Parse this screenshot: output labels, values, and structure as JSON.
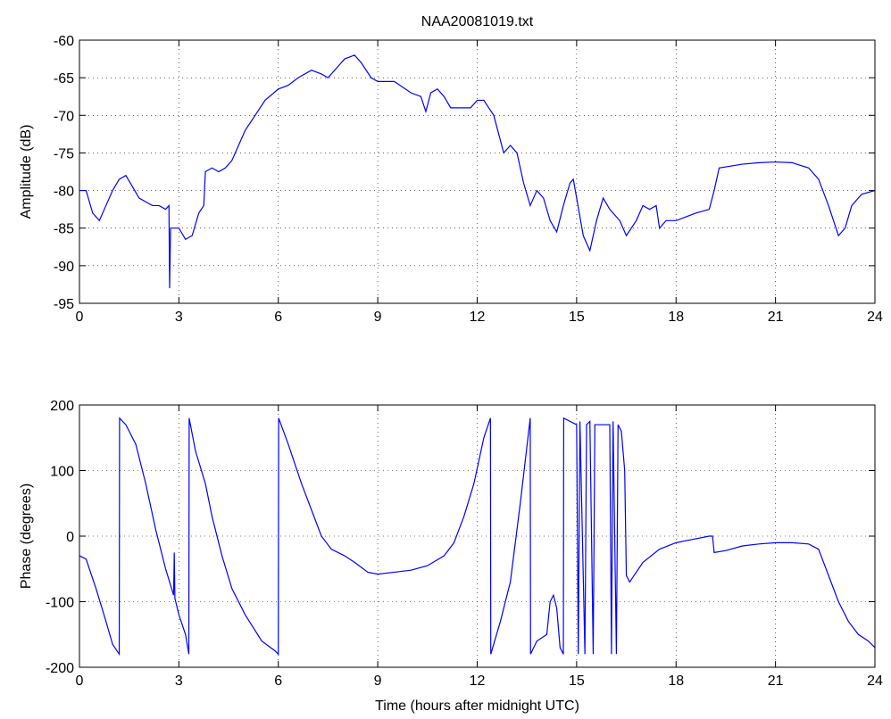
{
  "chart_data": [
    {
      "type": "line",
      "title": "NAA20081019.txt",
      "ylabel": "Amplitude (dB)",
      "color": "#0000ff",
      "grid": true,
      "xlim": [
        0,
        24
      ],
      "xticks": [
        0,
        3,
        6,
        9,
        12,
        15,
        18,
        21,
        24
      ],
      "ylim": [
        -95,
        -60
      ],
      "yticks": [
        -95,
        -90,
        -85,
        -80,
        -75,
        -70,
        -65,
        -60
      ],
      "x": [
        0,
        0.2,
        0.4,
        0.6,
        0.8,
        1.0,
        1.2,
        1.4,
        1.6,
        1.8,
        2.0,
        2.2,
        2.4,
        2.6,
        2.7,
        2.72,
        2.75,
        3.0,
        3.2,
        3.4,
        3.6,
        3.75,
        3.8,
        4.0,
        4.2,
        4.4,
        4.6,
        4.8,
        5.0,
        5.3,
        5.6,
        6.0,
        6.3,
        6.6,
        7.0,
        7.3,
        7.5,
        7.8,
        8.0,
        8.3,
        8.5,
        8.8,
        9.0,
        9.5,
        10.0,
        10.3,
        10.45,
        10.6,
        10.8,
        11.0,
        11.2,
        11.5,
        11.8,
        12.0,
        12.2,
        12.5,
        12.8,
        13.0,
        13.2,
        13.4,
        13.6,
        13.8,
        14.0,
        14.2,
        14.4,
        14.6,
        14.8,
        14.9,
        15.0,
        15.2,
        15.4,
        15.6,
        15.8,
        16.0,
        16.3,
        16.5,
        16.8,
        17.0,
        17.2,
        17.4,
        17.5,
        17.7,
        18.0,
        18.3,
        18.6,
        19.0,
        19.15,
        19.3,
        20.0,
        20.5,
        21.0,
        21.5,
        22.0,
        22.3,
        22.6,
        22.9,
        23.1,
        23.3,
        23.6,
        24.0
      ],
      "values": [
        -80,
        -80,
        -83,
        -84,
        -82,
        -80,
        -78.5,
        -78,
        -79.5,
        -81,
        -81.5,
        -82,
        -82,
        -82.5,
        -82,
        -93,
        -85,
        -85,
        -86.5,
        -86,
        -83,
        -82,
        -77.5,
        -77,
        -77.5,
        -77,
        -76,
        -74,
        -72,
        -70,
        -68,
        -66.5,
        -66,
        -65,
        -64,
        -64.5,
        -65,
        -63.5,
        -62.5,
        -62,
        -63,
        -65,
        -65.5,
        -65.5,
        -67,
        -67.5,
        -69.5,
        -67,
        -66.5,
        -67.5,
        -69,
        -69,
        -69,
        -68,
        -68,
        -70,
        -75,
        -74,
        -75,
        -79,
        -82,
        -80,
        -81,
        -84,
        -85.5,
        -82,
        -79,
        -78.5,
        -81,
        -86,
        -88,
        -84,
        -81,
        -82.5,
        -84,
        -86,
        -84,
        -82,
        -82.5,
        -82,
        -85,
        -84,
        -84,
        -83.5,
        -83,
        -82.5,
        -80,
        -77,
        -76.5,
        -76.3,
        -76.2,
        -76.3,
        -77,
        -78.5,
        -82,
        -86,
        -85,
        -82,
        -80.5,
        -80
      ]
    },
    {
      "type": "line",
      "ylabel": "Phase (degrees)",
      "xlabel": "Time (hours after midnight UTC)",
      "color": "#0000ff",
      "grid": true,
      "xlim": [
        0,
        24
      ],
      "xticks": [
        0,
        3,
        6,
        9,
        12,
        15,
        18,
        21,
        24
      ],
      "ylim": [
        -200,
        200
      ],
      "yticks": [
        -200,
        -100,
        0,
        100,
        200
      ],
      "x": [
        0,
        0.2,
        0.5,
        0.8,
        1.0,
        1.2,
        1.21,
        1.4,
        1.7,
        2.0,
        2.3,
        2.6,
        2.84,
        2.86,
        2.88,
        3.0,
        3.2,
        3.3,
        3.31,
        3.5,
        3.8,
        4.0,
        4.3,
        4.6,
        5.0,
        5.5,
        5.9,
        6.0,
        6.01,
        6.3,
        6.7,
        7.0,
        7.3,
        7.6,
        8.0,
        8.3,
        8.7,
        9.0,
        9.5,
        10.0,
        10.5,
        11.0,
        11.3,
        11.6,
        11.9,
        12.2,
        12.4,
        12.41,
        12.7,
        13.0,
        13.3,
        13.6,
        13.61,
        13.8,
        14.1,
        14.2,
        14.3,
        14.4,
        14.5,
        14.6,
        14.61,
        14.8,
        15.0,
        15.05,
        15.1,
        15.25,
        15.3,
        15.4,
        15.5,
        15.55,
        15.8,
        16.0,
        16.05,
        16.1,
        16.2,
        16.25,
        16.35,
        16.45,
        16.5,
        16.6,
        17.0,
        17.5,
        18.0,
        18.5,
        19.0,
        19.1,
        19.15,
        19.5,
        20.0,
        20.5,
        21.0,
        21.5,
        22.0,
        22.3,
        22.6,
        22.9,
        23.2,
        23.5,
        23.8,
        24.0
      ],
      "values": [
        -30,
        -35,
        -80,
        -130,
        -165,
        -180,
        180,
        170,
        140,
        80,
        10,
        -50,
        -90,
        -25,
        -95,
        -120,
        -150,
        -180,
        180,
        130,
        80,
        30,
        -30,
        -80,
        -120,
        -160,
        -175,
        -180,
        180,
        140,
        80,
        40,
        0,
        -20,
        -30,
        -40,
        -55,
        -58,
        -55,
        -52,
        -45,
        -30,
        -10,
        30,
        80,
        150,
        180,
        -180,
        -130,
        -70,
        50,
        180,
        -180,
        -160,
        -150,
        -100,
        -90,
        -110,
        -170,
        -180,
        180,
        175,
        170,
        -180,
        175,
        -180,
        170,
        175,
        -180,
        170,
        170,
        170,
        -180,
        175,
        -180,
        170,
        160,
        100,
        -60,
        -70,
        -40,
        -20,
        -10,
        -5,
        0,
        0,
        -25,
        -22,
        -15,
        -12,
        -10,
        -10,
        -12,
        -20,
        -60,
        -100,
        -130,
        -150,
        -160,
        -170
      ]
    }
  ]
}
